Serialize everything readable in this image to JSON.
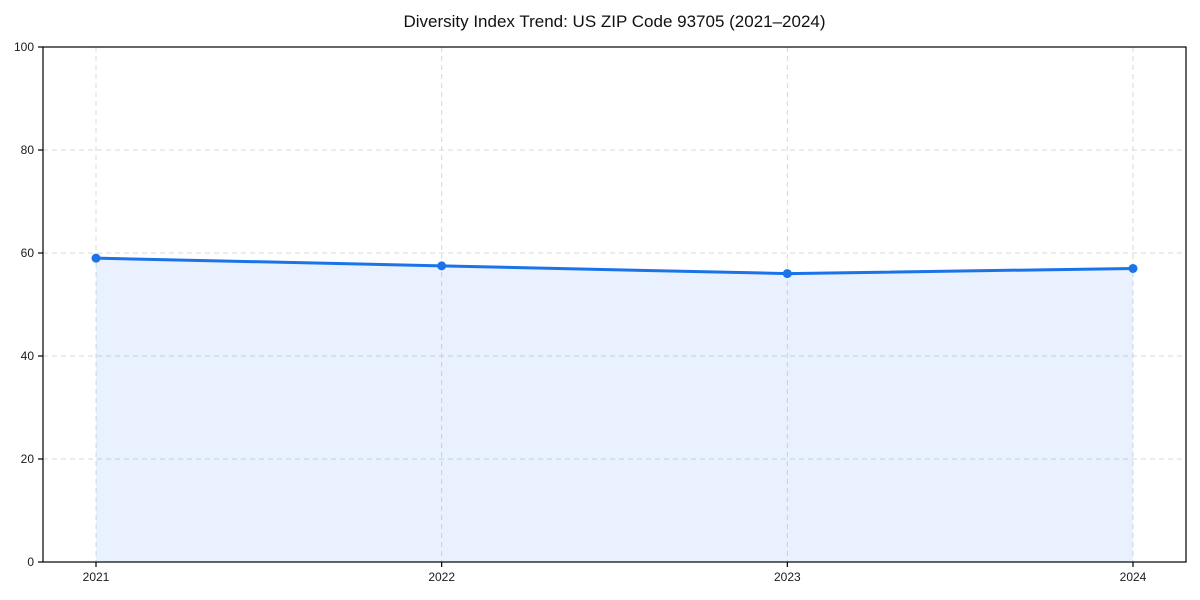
{
  "chart_data": {
    "type": "area",
    "title": "Diversity Index Trend: US ZIP Code 93705 (2021–2024)",
    "categories": [
      "2021",
      "2022",
      "2023",
      "2024"
    ],
    "series": [
      {
        "name": "Diversity Index",
        "values": [
          59,
          57.5,
          56,
          57
        ]
      }
    ],
    "xlabel": "",
    "ylabel": "",
    "ylim": [
      0,
      100
    ],
    "yticks": [
      0,
      20,
      40,
      60,
      80,
      100
    ],
    "grid": "dashed, both axes",
    "legend_position": "none",
    "marker": "circle"
  },
  "colors": {
    "line": "#1a73e8",
    "fill": "rgba(26,115,232,0.10)",
    "grid": "#d9d9d9",
    "axis": "#000000",
    "text": "#1a1a1a",
    "background": "#ffffff"
  }
}
